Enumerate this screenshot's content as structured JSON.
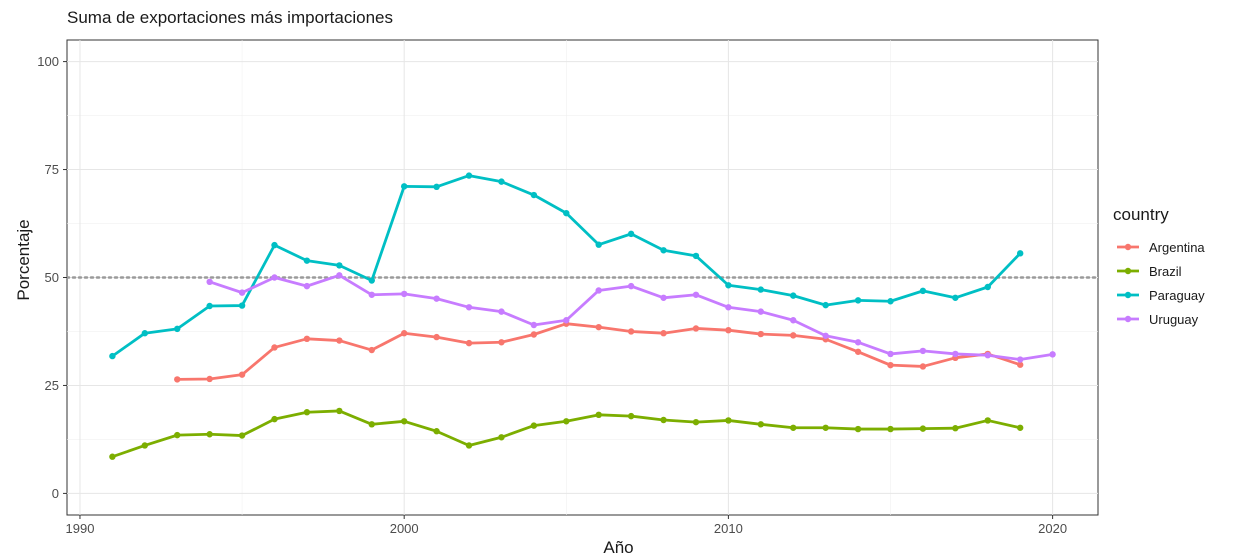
{
  "chart_data": {
    "type": "line",
    "title": "Suma de exportaciones más importaciones",
    "xlabel": "Año",
    "ylabel": "Porcentaje",
    "xlim": [
      1989.6,
      2021.4
    ],
    "ylim": [
      -5,
      105
    ],
    "x_ticks": [
      1990,
      2000,
      2010,
      2020
    ],
    "y_ticks": [
      0,
      25,
      50,
      75,
      100
    ],
    "reference_line": 50,
    "grid": true,
    "legend_position": "right",
    "legend_title": "country",
    "series": [
      {
        "name": "Argentina",
        "color": "#F8766D",
        "x": [
          1993,
          1994,
          1995,
          1996,
          1997,
          1998,
          1999,
          2000,
          2001,
          2002,
          2003,
          2004,
          2005,
          2006,
          2007,
          2008,
          2009,
          2010,
          2011,
          2012,
          2013,
          2014,
          2015,
          2016,
          2017,
          2018,
          2019
        ],
        "y": [
          26.4,
          26.5,
          27.5,
          33.8,
          35.8,
          35.4,
          33.2,
          37.1,
          36.2,
          34.8,
          35.0,
          36.8,
          39.3,
          38.5,
          37.5,
          37.1,
          38.2,
          37.8,
          36.9,
          36.6,
          35.7,
          32.8,
          29.7,
          29.4,
          31.4,
          32.3,
          29.8
        ]
      },
      {
        "name": "Brazil",
        "color": "#7CAE00",
        "x": [
          1991,
          1992,
          1993,
          1994,
          1995,
          1996,
          1997,
          1998,
          1999,
          2000,
          2001,
          2002,
          2003,
          2004,
          2005,
          2006,
          2007,
          2008,
          2009,
          2010,
          2011,
          2012,
          2013,
          2014,
          2015,
          2016,
          2017,
          2018,
          2019
        ],
        "y": [
          8.5,
          11.1,
          13.5,
          13.7,
          13.4,
          17.2,
          18.8,
          19.1,
          16.0,
          16.7,
          14.4,
          11.1,
          13.0,
          15.7,
          16.7,
          18.2,
          17.9,
          17.0,
          16.5,
          16.9,
          16.0,
          15.2,
          15.2,
          14.9,
          14.9,
          15.0,
          15.1,
          16.9,
          15.2
        ]
      },
      {
        "name": "Paraguay",
        "color": "#00BFC4",
        "x": [
          1991,
          1992,
          1993,
          1994,
          1995,
          1996,
          1997,
          1998,
          1999,
          2000,
          2001,
          2002,
          2003,
          2004,
          2005,
          2006,
          2007,
          2008,
          2009,
          2010,
          2011,
          2012,
          2013,
          2014,
          2015,
          2016,
          2017,
          2018,
          2019
        ],
        "y": [
          31.8,
          37.1,
          38.1,
          43.4,
          43.5,
          57.5,
          53.9,
          52.8,
          49.3,
          71.1,
          71.0,
          73.6,
          72.2,
          69.1,
          64.9,
          57.6,
          60.1,
          56.3,
          55.0,
          48.2,
          47.2,
          45.8,
          43.6,
          44.7,
          44.5,
          46.9,
          45.3,
          47.8,
          55.6
        ]
      },
      {
        "name": "Uruguay",
        "color": "#C77CFF",
        "x": [
          1994,
          1995,
          1996,
          1997,
          1998,
          1999,
          2000,
          2001,
          2002,
          2003,
          2004,
          2005,
          2006,
          2007,
          2008,
          2009,
          2010,
          2011,
          2012,
          2013,
          2014,
          2015,
          2016,
          2017,
          2018,
          2019,
          2020
        ],
        "y": [
          49.0,
          46.5,
          50.0,
          48.0,
          50.5,
          46.0,
          46.2,
          45.1,
          43.1,
          42.1,
          39.0,
          40.1,
          47.0,
          48.0,
          45.3,
          46.0,
          43.1,
          42.1,
          40.1,
          36.5,
          35.0,
          32.3,
          33.0,
          32.3,
          32.0,
          31.0,
          32.2
        ]
      }
    ]
  }
}
